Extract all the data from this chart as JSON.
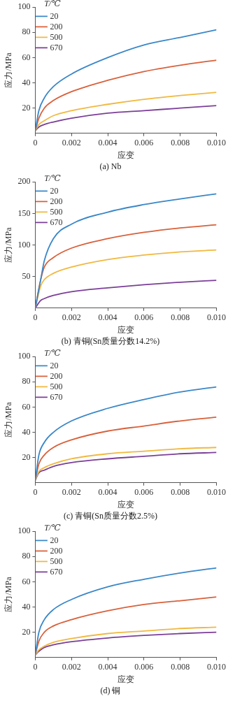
{
  "chart_data": [
    {
      "type": "line",
      "title": "(a) Nb",
      "xlabel": "应变",
      "ylabel": "应力/MPa",
      "legend_title": "T/℃",
      "legend": "top left",
      "marker": "none",
      "line_style": "solid",
      "grid": false,
      "xlim": [
        0,
        0.01
      ],
      "ylim": [
        0,
        100
      ],
      "xticks": [
        {
          "value": 0,
          "label": "0"
        },
        {
          "value": 0.002,
          "label": "0.002"
        },
        {
          "value": 0.004,
          "label": "0.004"
        },
        {
          "value": 0.006,
          "label": "0.006"
        },
        {
          "value": 0.008,
          "label": "0.008"
        },
        {
          "value": 0.01,
          "label": "0.010"
        }
      ],
      "yticks": [
        20,
        40,
        60,
        80,
        100
      ],
      "x": [
        0,
        0.0002,
        0.0005,
        0.001,
        0.002,
        0.004,
        0.006,
        0.008,
        0.01
      ],
      "series": [
        {
          "name": "20",
          "color": "#3a87c8",
          "values": [
            2,
            18,
            28,
            37,
            47,
            60,
            70,
            76,
            82
          ]
        },
        {
          "name": "200",
          "color": "#d9603a",
          "values": [
            2,
            12,
            20,
            26,
            33,
            42,
            49,
            54,
            58
          ]
        },
        {
          "name": "500",
          "color": "#f0b840",
          "values": [
            2,
            7,
            10,
            14,
            18,
            23,
            27,
            30,
            32.5
          ]
        },
        {
          "name": "670",
          "color": "#7b3f98",
          "values": [
            2,
            5,
            7,
            9,
            12,
            16,
            18,
            20,
            22
          ]
        }
      ]
    },
    {
      "type": "line",
      "title": "(b) 青铜(Sn质量分数14.2%)",
      "xlabel": "应变",
      "ylabel": "应力/MPa",
      "legend_title": "T/℃",
      "legend": "top left",
      "marker": "none",
      "line_style": "solid",
      "grid": false,
      "xlim": [
        0,
        0.01
      ],
      "ylim": [
        0,
        200
      ],
      "xticks": [
        {
          "value": 0,
          "label": "0"
        },
        {
          "value": 0.002,
          "label": "0.002"
        },
        {
          "value": 0.004,
          "label": "0.004"
        },
        {
          "value": 0.006,
          "label": "0.006"
        },
        {
          "value": 0.008,
          "label": "0.008"
        },
        {
          "value": 0.01,
          "label": "0.010"
        }
      ],
      "yticks": [
        50,
        100,
        150,
        200
      ],
      "x": [
        0,
        0.0003,
        0.0005,
        0.001,
        0.002,
        0.004,
        0.006,
        0.008,
        0.01
      ],
      "series": [
        {
          "name": "20",
          "color": "#3a87c8",
          "values": [
            0,
            45,
            75,
            110,
            133,
            152,
            164,
            173,
            181
          ]
        },
        {
          "name": "200",
          "color": "#d9603a",
          "values": [
            0,
            45,
            65,
            80,
            95,
            110,
            120,
            127,
            132
          ]
        },
        {
          "name": "500",
          "color": "#f0b840",
          "values": [
            0,
            35,
            45,
            55,
            65,
            77,
            84,
            89,
            92
          ]
        },
        {
          "name": "670",
          "color": "#7b3f98",
          "values": [
            0,
            12,
            15,
            20,
            26,
            32,
            37,
            41,
            44
          ]
        }
      ]
    },
    {
      "type": "line",
      "title": "(c) 青铜(Sn质量分数2.5%)",
      "xlabel": "应变",
      "ylabel": "应力/MPa",
      "legend_title": "T/℃",
      "legend": "top left",
      "marker": "none",
      "line_style": "solid",
      "grid": false,
      "xlim": [
        0,
        0.01
      ],
      "ylim": [
        0,
        100
      ],
      "xticks": [
        {
          "value": 0,
          "label": "0"
        },
        {
          "value": 0.002,
          "label": "0.002"
        },
        {
          "value": 0.004,
          "label": "0.004"
        },
        {
          "value": 0.006,
          "label": "0.006"
        },
        {
          "value": 0.008,
          "label": "0.008"
        },
        {
          "value": 0.01,
          "label": "0.010"
        }
      ],
      "yticks": [
        20,
        40,
        60,
        80,
        100
      ],
      "x": [
        0,
        0.0002,
        0.0005,
        0.001,
        0.002,
        0.004,
        0.006,
        0.008,
        0.01
      ],
      "series": [
        {
          "name": "20",
          "color": "#3a87c8",
          "values": [
            2,
            22,
            32,
            40,
            49,
            59,
            66,
            72,
            76
          ]
        },
        {
          "name": "200",
          "color": "#d9603a",
          "values": [
            2,
            15,
            22,
            28,
            34,
            41,
            45,
            49,
            52
          ]
        },
        {
          "name": "500",
          "color": "#f0b840",
          "values": [
            2,
            9,
            12,
            15,
            19,
            23,
            25,
            27,
            28
          ]
        },
        {
          "name": "670",
          "color": "#7b3f98",
          "values": [
            2,
            8,
            10,
            13,
            16,
            19,
            21,
            23,
            24
          ]
        }
      ]
    },
    {
      "type": "line",
      "title": "(d) 铜",
      "xlabel": "应变",
      "ylabel": "应力/MPa",
      "legend_title": "T/℃",
      "legend": "top left",
      "marker": "none",
      "line_style": "solid",
      "grid": false,
      "xlim": [
        0,
        0.01
      ],
      "ylim": [
        0,
        100
      ],
      "xticks": [
        {
          "value": 0,
          "label": "0"
        },
        {
          "value": 0.002,
          "label": "0.002"
        },
        {
          "value": 0.004,
          "label": "0.004"
        },
        {
          "value": 0.006,
          "label": "0.006"
        },
        {
          "value": 0.008,
          "label": "0.008"
        },
        {
          "value": 0.01,
          "label": "0.010"
        }
      ],
      "yticks": [
        20,
        40,
        60,
        80,
        100
      ],
      "x": [
        0,
        0.0002,
        0.0005,
        0.001,
        0.002,
        0.004,
        0.006,
        0.008,
        0.01
      ],
      "series": [
        {
          "name": "20",
          "color": "#3a87c8",
          "values": [
            2,
            20,
            30,
            38,
            46,
            56,
            62,
            67,
            71
          ]
        },
        {
          "name": "200",
          "color": "#d9603a",
          "values": [
            2,
            13,
            20,
            25,
            30,
            37,
            42,
            45,
            48
          ]
        },
        {
          "name": "500",
          "color": "#f0b840",
          "values": [
            2,
            6,
            9,
            12,
            15,
            19,
            21,
            23,
            24
          ]
        },
        {
          "name": "670",
          "color": "#7b3f98",
          "values": [
            2,
            5,
            8,
            10,
            12.5,
            15.5,
            17.5,
            19,
            20
          ]
        }
      ]
    }
  ]
}
